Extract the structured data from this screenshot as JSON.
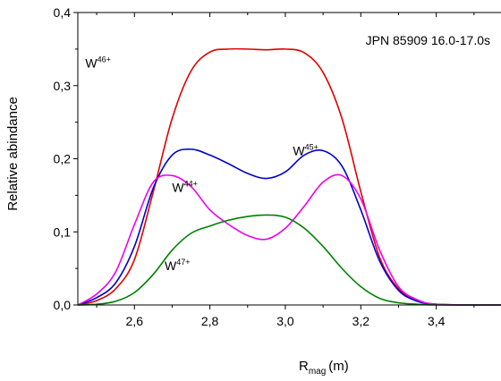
{
  "chart_data": {
    "type": "line",
    "title": "JPN 85909 16.0-17.0s",
    "xlabel_main": "R",
    "xlabel_sub": "mag",
    "xlabel_unit": "(m)",
    "ylabel": "Relative abindance",
    "xlim": [
      2.45,
      3.6
    ],
    "ylim": [
      0.0,
      0.4
    ],
    "x_ticks": [
      2.6,
      2.8,
      3.0,
      3.2,
      3.4
    ],
    "x_tick_labels": [
      "2,6",
      "2,8",
      "3,0",
      "3,2",
      "3,4"
    ],
    "y_ticks": [
      0.0,
      0.1,
      0.2,
      0.3,
      0.4
    ],
    "y_tick_labels": [
      "0,0",
      "0,1",
      "0,2",
      "0,3",
      "0,4"
    ],
    "grid": false,
    "series": [
      {
        "name": "W46+",
        "color": "#e00000",
        "x": [
          2.45,
          2.5,
          2.55,
          2.6,
          2.65,
          2.7,
          2.75,
          2.8,
          2.85,
          2.9,
          2.95,
          3.0,
          3.05,
          3.1,
          3.15,
          3.2,
          3.25,
          3.3,
          3.35,
          3.4,
          3.5,
          3.6
        ],
        "y": [
          0.0,
          0.006,
          0.022,
          0.062,
          0.155,
          0.255,
          0.32,
          0.346,
          0.35,
          0.35,
          0.349,
          0.35,
          0.345,
          0.318,
          0.255,
          0.155,
          0.065,
          0.022,
          0.006,
          0.001,
          0.0,
          0.0
        ]
      },
      {
        "name": "W45+",
        "color": "#0000cc",
        "x": [
          2.45,
          2.5,
          2.55,
          2.6,
          2.65,
          2.7,
          2.75,
          2.8,
          2.85,
          2.9,
          2.95,
          3.0,
          3.05,
          3.1,
          3.15,
          3.2,
          3.25,
          3.3,
          3.35,
          3.4,
          3.5,
          3.6
        ],
        "y": [
          0.0,
          0.01,
          0.03,
          0.08,
          0.16,
          0.205,
          0.213,
          0.205,
          0.193,
          0.18,
          0.173,
          0.182,
          0.205,
          0.211,
          0.19,
          0.13,
          0.06,
          0.02,
          0.005,
          0.001,
          0.0,
          0.0
        ]
      },
      {
        "name": "W44+",
        "color": "#ee00ee",
        "x": [
          2.45,
          2.5,
          2.55,
          2.6,
          2.65,
          2.7,
          2.75,
          2.8,
          2.85,
          2.9,
          2.95,
          3.0,
          3.05,
          3.1,
          3.15,
          3.2,
          3.25,
          3.3,
          3.35,
          3.4,
          3.5,
          3.6
        ],
        "y": [
          0.0,
          0.015,
          0.045,
          0.11,
          0.168,
          0.177,
          0.162,
          0.13,
          0.11,
          0.095,
          0.09,
          0.105,
          0.135,
          0.168,
          0.177,
          0.145,
          0.075,
          0.025,
          0.007,
          0.001,
          0.0,
          0.0
        ]
      },
      {
        "name": "W47+",
        "color": "#008000",
        "x": [
          2.45,
          2.5,
          2.55,
          2.6,
          2.65,
          2.7,
          2.75,
          2.8,
          2.85,
          2.9,
          2.95,
          3.0,
          3.05,
          3.1,
          3.15,
          3.2,
          3.25,
          3.3,
          3.35,
          3.4,
          3.5,
          3.6
        ],
        "y": [
          0.0,
          0.001,
          0.005,
          0.017,
          0.042,
          0.075,
          0.098,
          0.108,
          0.116,
          0.121,
          0.123,
          0.12,
          0.105,
          0.08,
          0.05,
          0.025,
          0.009,
          0.003,
          0.001,
          0.0,
          0.0,
          0.0
        ]
      }
    ],
    "annotations": [
      {
        "base": "W",
        "sup": "46+",
        "x": 2.47,
        "y": 0.325
      },
      {
        "base": "W",
        "sup": "45+",
        "x": 3.02,
        "y": 0.205
      },
      {
        "base": "W",
        "sup": "44+",
        "x": 2.7,
        "y": 0.155
      },
      {
        "base": "W",
        "sup": "47+",
        "x": 2.68,
        "y": 0.048
      }
    ]
  }
}
